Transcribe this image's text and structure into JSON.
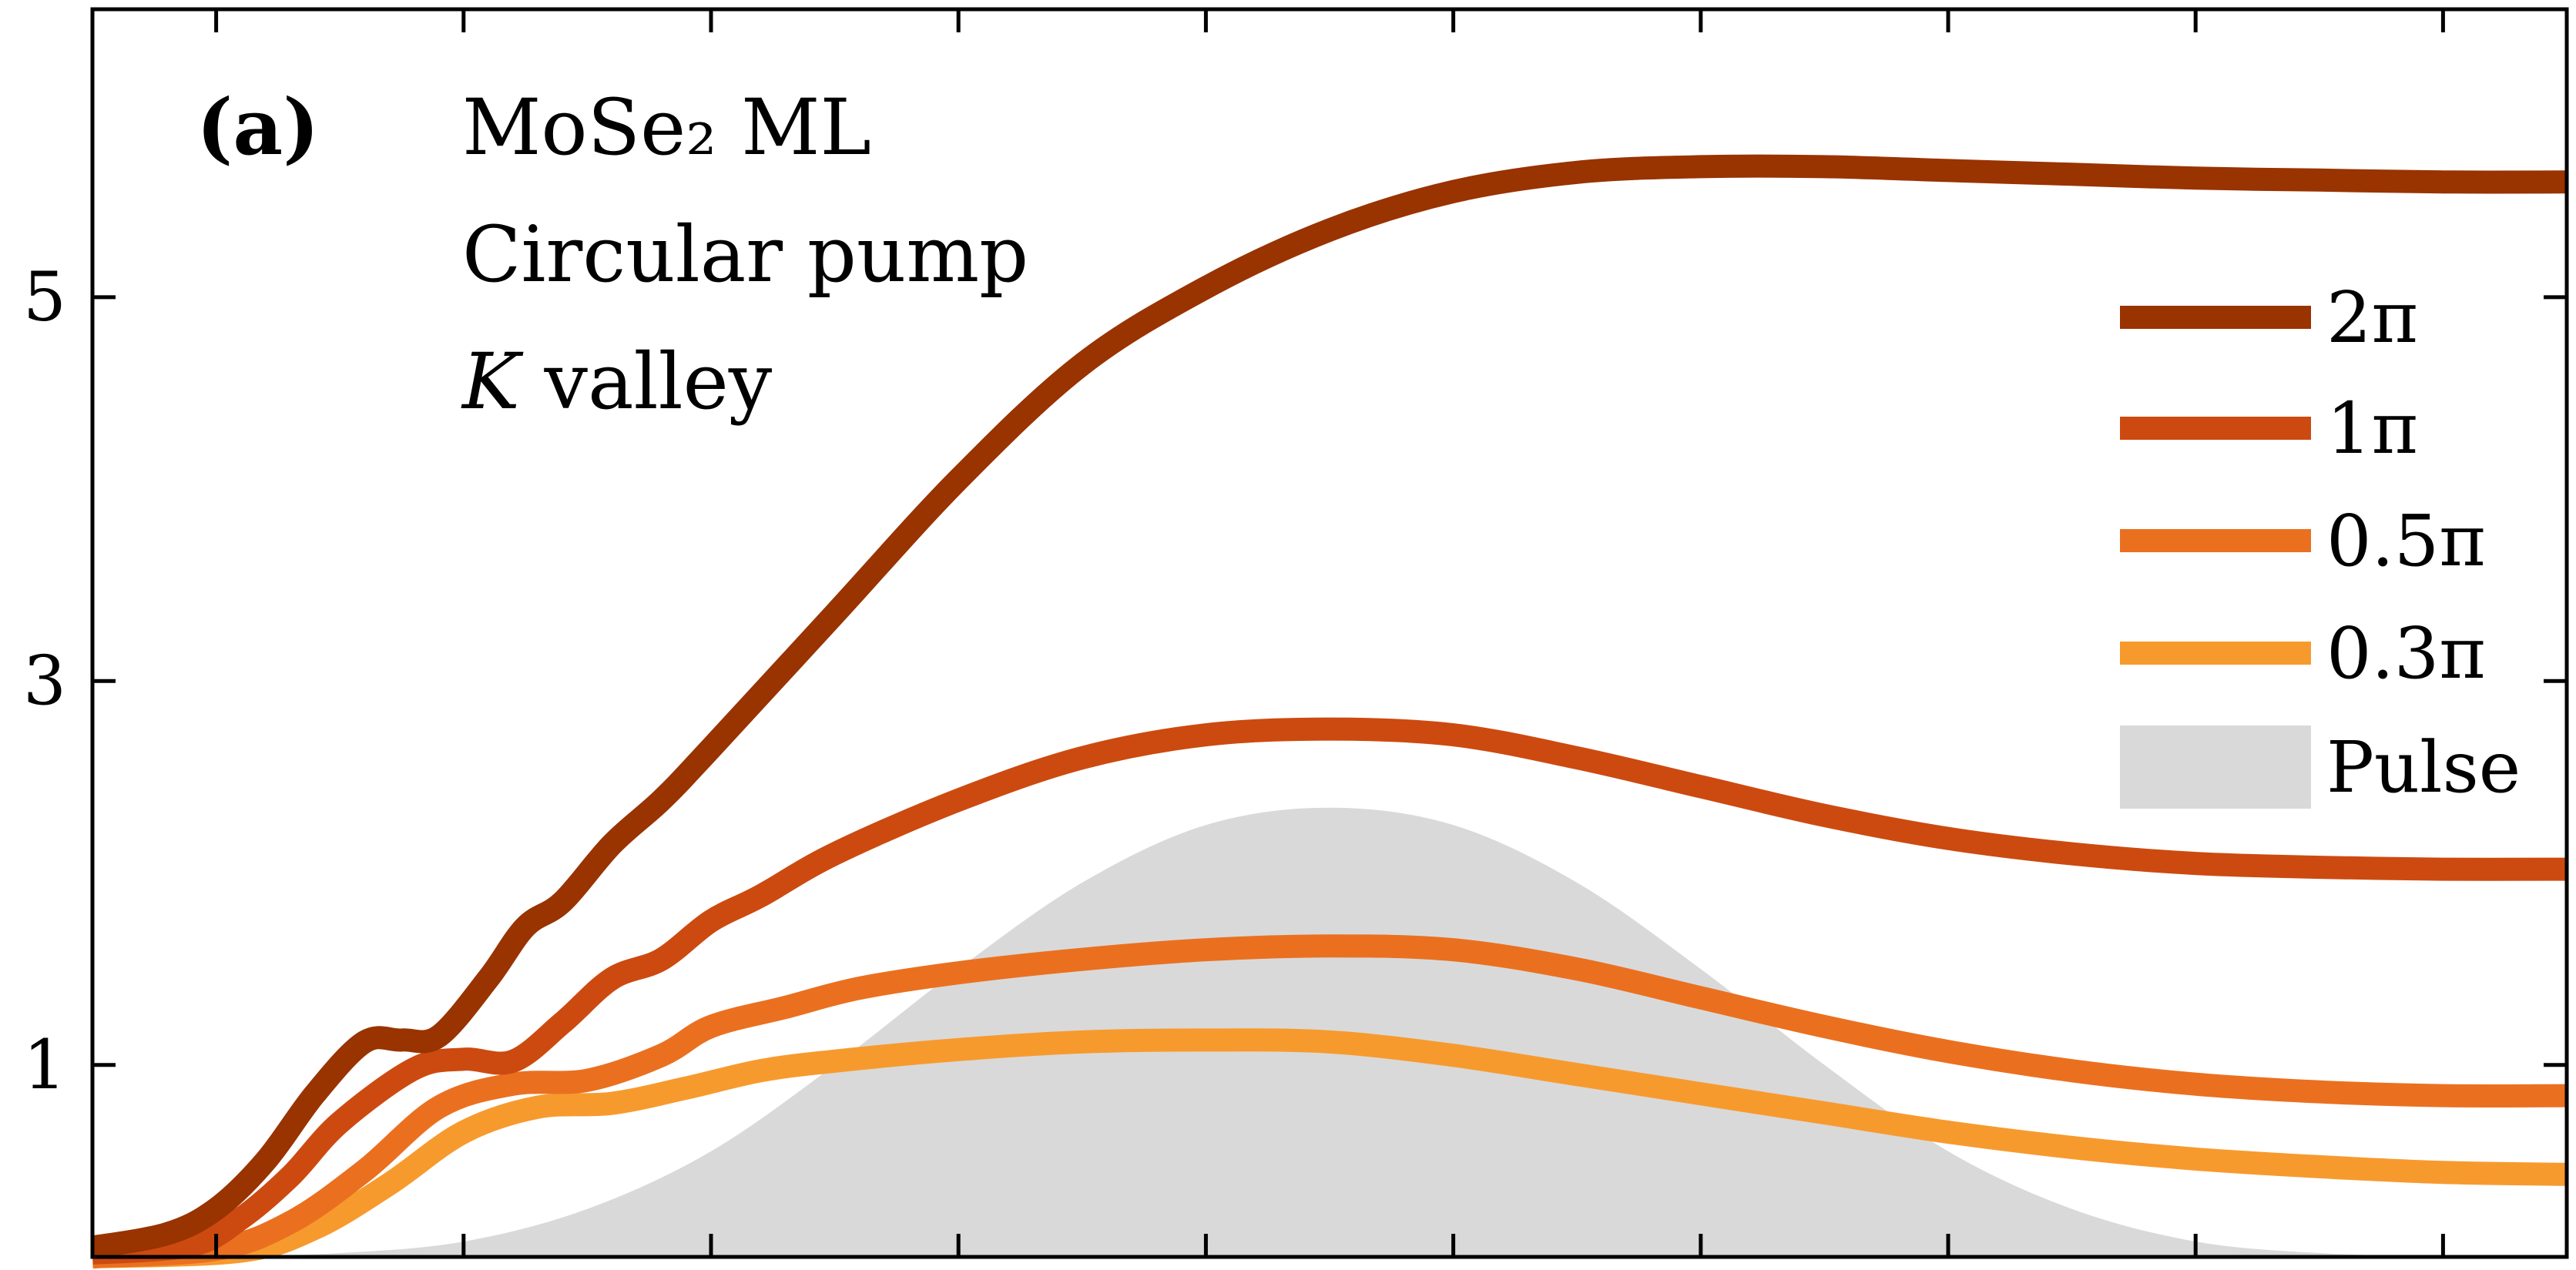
{
  "chart_data": {
    "type": "line",
    "title": "",
    "xlabel": "",
    "ylabel": "",
    "xlim": [
      0,
      100
    ],
    "ylim": [
      0,
      6.5
    ],
    "y_ticks": [
      1,
      3,
      5
    ],
    "y_tick_labels": [
      "1",
      "3",
      "5"
    ],
    "x_ticks": [
      5,
      15,
      25,
      35,
      45,
      55,
      65,
      75,
      85,
      95
    ],
    "grid": false,
    "legend_position": "right",
    "annotations": {
      "panel": "(a)",
      "line1": "MoSe₂ ML",
      "line2": "Circular pump",
      "line3_italic": "K",
      "line3_rest": " valley"
    },
    "series": [
      {
        "name": "2π",
        "color": "#993300",
        "x": [
          0,
          3,
          5,
          7,
          9,
          11,
          12.5,
          14,
          16,
          17.5,
          19,
          21,
          23,
          25,
          30,
          35,
          40,
          45,
          50,
          55,
          60,
          65,
          70,
          75,
          80,
          85,
          90,
          95,
          100
        ],
        "y": [
          0.05,
          0.12,
          0.25,
          0.5,
          0.85,
          1.12,
          1.13,
          1.15,
          1.45,
          1.72,
          1.85,
          2.15,
          2.38,
          2.65,
          3.35,
          4.05,
          4.65,
          5.05,
          5.35,
          5.55,
          5.65,
          5.68,
          5.68,
          5.66,
          5.64,
          5.62,
          5.61,
          5.6,
          5.6
        ]
      },
      {
        "name": "1π",
        "color": "#CC4A10",
        "x": [
          0,
          4,
          6,
          8,
          10,
          13,
          15,
          17,
          19,
          21,
          23,
          25,
          27,
          30,
          35,
          40,
          45,
          50,
          55,
          60,
          65,
          70,
          75,
          80,
          85,
          90,
          95,
          100
        ],
        "y": [
          0.02,
          0.06,
          0.2,
          0.42,
          0.7,
          0.98,
          1.03,
          1.02,
          1.22,
          1.45,
          1.55,
          1.75,
          1.88,
          2.1,
          2.38,
          2.6,
          2.72,
          2.75,
          2.72,
          2.6,
          2.45,
          2.3,
          2.18,
          2.1,
          2.05,
          2.03,
          2.02,
          2.02
        ]
      },
      {
        "name": "0.5π",
        "color": "#EA7020",
        "x": [
          0,
          5,
          8,
          11,
          14,
          17,
          20,
          23,
          25,
          28,
          31,
          35,
          40,
          45,
          50,
          55,
          60,
          65,
          70,
          75,
          80,
          85,
          90,
          95,
          100
        ],
        "y": [
          0.0,
          0.04,
          0.18,
          0.45,
          0.78,
          0.9,
          0.92,
          1.05,
          1.2,
          1.3,
          1.4,
          1.48,
          1.55,
          1.6,
          1.62,
          1.6,
          1.5,
          1.35,
          1.2,
          1.07,
          0.97,
          0.9,
          0.86,
          0.84,
          0.84
        ]
      },
      {
        "name": "0.3π",
        "color": "#F79A2E",
        "x": [
          0,
          6,
          9,
          12,
          15,
          18,
          21,
          24,
          27,
          30,
          35,
          40,
          45,
          50,
          55,
          60,
          65,
          70,
          75,
          80,
          85,
          90,
          95,
          100
        ],
        "y": [
          0.0,
          0.03,
          0.15,
          0.38,
          0.65,
          0.78,
          0.8,
          0.88,
          0.97,
          1.02,
          1.08,
          1.12,
          1.13,
          1.12,
          1.05,
          0.95,
          0.85,
          0.75,
          0.65,
          0.57,
          0.51,
          0.47,
          0.44,
          0.43
        ]
      },
      {
        "name": "Pulse",
        "color": "#D9D9D9",
        "fill": true,
        "x": [
          0,
          5,
          10,
          15,
          20,
          25,
          30,
          35,
          40,
          45,
          50,
          55,
          60,
          65,
          70,
          75,
          80,
          85,
          90,
          95,
          100
        ],
        "y": [
          0.0,
          0.003,
          0.02,
          0.08,
          0.25,
          0.55,
          1.0,
          1.5,
          1.95,
          2.25,
          2.34,
          2.25,
          1.95,
          1.5,
          1.0,
          0.55,
          0.25,
          0.08,
          0.02,
          0.003,
          0.0
        ]
      }
    ]
  }
}
